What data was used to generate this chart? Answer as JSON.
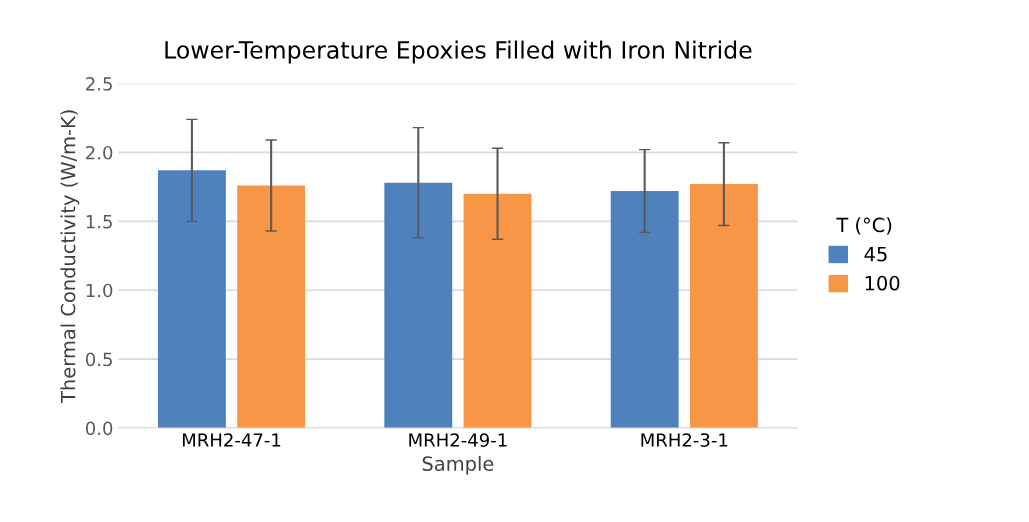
{
  "chart_data": {
    "type": "bar",
    "title": "Lower-Temperature Epoxies Filled with Iron Nitride",
    "xlabel": "Sample",
    "ylabel": "Thermal Conductivity (W/m-K)",
    "legend_title": "T (°C)",
    "categories": [
      "MRH2-47-1",
      "MRH2-49-1",
      "MRH2-3-1"
    ],
    "series": [
      {
        "name": "45",
        "color": "#4f81bd",
        "values": [
          1.87,
          1.78,
          1.72
        ],
        "errors": [
          0.37,
          0.4,
          0.3
        ]
      },
      {
        "name": "100",
        "color": "#f79646",
        "values": [
          1.76,
          1.7,
          1.77
        ],
        "errors": [
          0.33,
          0.33,
          0.3
        ]
      }
    ],
    "ylim": [
      0,
      2.5
    ],
    "yticks": [
      {
        "value": 0,
        "label": "0.0"
      },
      {
        "value": 0.5,
        "label": "0.5"
      },
      {
        "value": 1,
        "label": "1.0"
      },
      {
        "value": 1.5,
        "label": "1.5"
      },
      {
        "value": 2,
        "label": "2.0"
      },
      {
        "value": 2.5,
        "label": "2.5"
      }
    ],
    "grid": "y",
    "legend": "right"
  }
}
